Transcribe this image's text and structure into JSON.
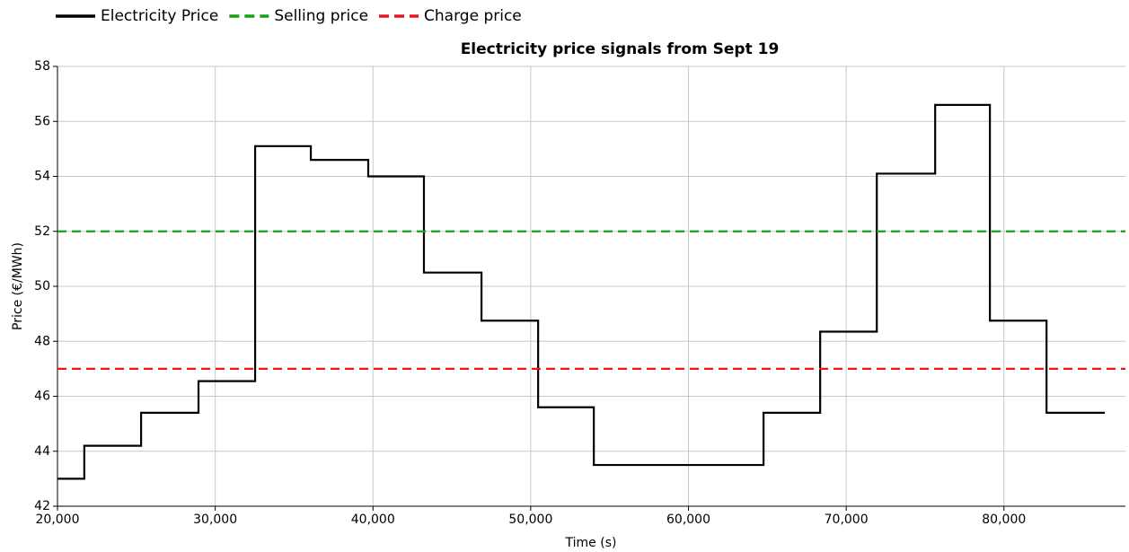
{
  "chart_data": {
    "type": "line",
    "title": "Electricity price signals from Sept 19",
    "xlabel": "Time (s)",
    "ylabel": "Price (€/MWh)",
    "xlim": [
      20000,
      87700
    ],
    "ylim": [
      42,
      58
    ],
    "xticks": [
      {
        "value": 20000,
        "label": "20,000"
      },
      {
        "value": 30000,
        "label": "30,000"
      },
      {
        "value": 40000,
        "label": "40,000"
      },
      {
        "value": 50000,
        "label": "50,000"
      },
      {
        "value": 60000,
        "label": "60,000"
      },
      {
        "value": 70000,
        "label": "70,000"
      },
      {
        "value": 80000,
        "label": "80,000"
      }
    ],
    "yticks": [
      42,
      44,
      46,
      48,
      50,
      52,
      54,
      56,
      58
    ],
    "grid": true,
    "legend": "top-left",
    "series": [
      {
        "name": "Electricity Price",
        "color": "#000000",
        "style": "step",
        "x": [
          20000,
          21700,
          25300,
          28940,
          32530,
          36060,
          39700,
          43230,
          46880,
          50470,
          54000,
          64760,
          68350,
          71940,
          75640,
          79110,
          82700,
          86400
        ],
        "values": [
          43.0,
          44.2,
          45.4,
          46.55,
          55.1,
          54.6,
          54.0,
          50.5,
          48.75,
          45.6,
          43.5,
          45.4,
          48.35,
          54.1,
          56.6,
          48.75,
          45.4,
          45.4
        ]
      },
      {
        "name": "Selling price",
        "color": "#16a016",
        "style": "dashed",
        "x": [
          20000,
          87700
        ],
        "values": [
          52,
          52
        ]
      },
      {
        "name": "Charge price",
        "color": "#e8161b",
        "style": "dashed",
        "x": [
          20000,
          87700
        ],
        "values": [
          47,
          47
        ]
      }
    ]
  }
}
